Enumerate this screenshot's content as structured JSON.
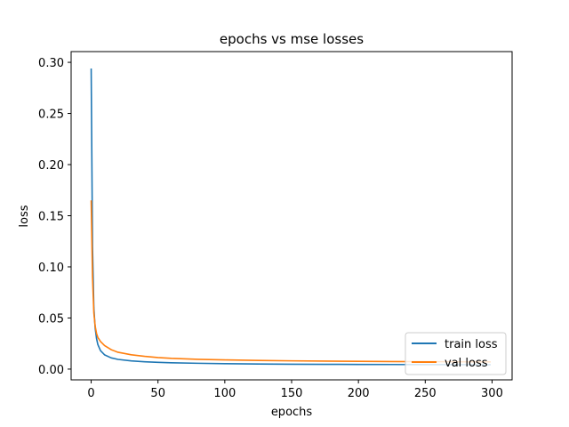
{
  "chart_data": {
    "type": "line",
    "title": "epochs vs mse losses",
    "xlabel": "epochs",
    "ylabel": "loss",
    "xlim": [
      -15,
      315
    ],
    "ylim": [
      -0.0105,
      0.3105
    ],
    "xticks": [
      0,
      50,
      100,
      150,
      200,
      250,
      300
    ],
    "yticks": [
      0.0,
      0.05,
      0.1,
      0.15,
      0.2,
      0.25,
      0.3
    ],
    "xtick_labels": [
      "0",
      "50",
      "100",
      "150",
      "200",
      "250",
      "300"
    ],
    "ytick_labels": [
      "0.00",
      "0.05",
      "0.10",
      "0.15",
      "0.20",
      "0.25",
      "0.30"
    ],
    "grid": false,
    "legend_position": "lower right",
    "series": [
      {
        "name": "train loss",
        "color": "#1f77b4",
        "x": [
          0,
          1,
          2,
          3,
          4,
          5,
          7,
          10,
          15,
          20,
          30,
          40,
          50,
          60,
          80,
          100,
          125,
          150,
          175,
          200,
          225,
          250,
          275,
          299
        ],
        "y": [
          0.294,
          0.12,
          0.06,
          0.04,
          0.03,
          0.024,
          0.018,
          0.014,
          0.011,
          0.0095,
          0.008,
          0.0072,
          0.0066,
          0.0062,
          0.0057,
          0.0053,
          0.005,
          0.0048,
          0.0047,
          0.0046,
          0.0045,
          0.0044,
          0.0044,
          0.0043
        ]
      },
      {
        "name": "val loss",
        "color": "#ff7f0e",
        "x": [
          0,
          1,
          2,
          3,
          4,
          5,
          7,
          10,
          15,
          20,
          30,
          40,
          50,
          60,
          80,
          100,
          125,
          150,
          175,
          200,
          225,
          250,
          275,
          299
        ],
        "y": [
          0.165,
          0.09,
          0.055,
          0.042,
          0.035,
          0.031,
          0.027,
          0.023,
          0.019,
          0.0165,
          0.014,
          0.0125,
          0.0113,
          0.0105,
          0.0096,
          0.009,
          0.0085,
          0.0081,
          0.0078,
          0.0076,
          0.0074,
          0.0073,
          0.0072,
          0.0071
        ]
      }
    ]
  }
}
